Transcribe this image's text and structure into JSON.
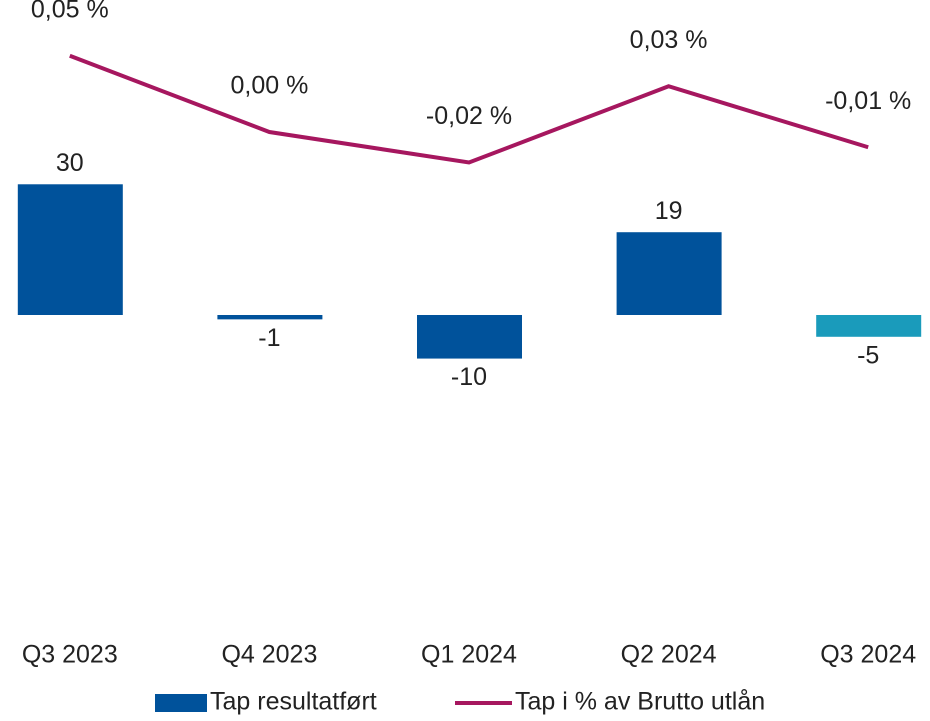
{
  "chart_data": {
    "type": "bar-line",
    "categories": [
      "Q3 2023",
      "Q4 2023",
      "Q1 2024",
      "Q2 2024",
      "Q3 2024"
    ],
    "series": [
      {
        "name": "Tap resultatført",
        "type": "bar",
        "color": "#00529b",
        "colors": [
          "#00529b",
          "#00529b",
          "#00529b",
          "#00529b",
          "#1a9bbb"
        ],
        "values": [
          30,
          -1,
          -10,
          19,
          -5
        ]
      },
      {
        "name": "Tap i % av Brutto utlån",
        "type": "line",
        "axis": "y2",
        "color": "#a6175f",
        "values": [
          0.05,
          0.0,
          -0.02,
          0.03,
          -0.01
        ],
        "value_labels": [
          "0,05 %",
          "0,00 %",
          "-0,02 %",
          "0,03 %",
          "-0,01 %"
        ]
      }
    ],
    "ylim": [
      -70,
      70
    ],
    "y2lim": [
      -0.32,
      0.08
    ],
    "legend": "bottom"
  }
}
